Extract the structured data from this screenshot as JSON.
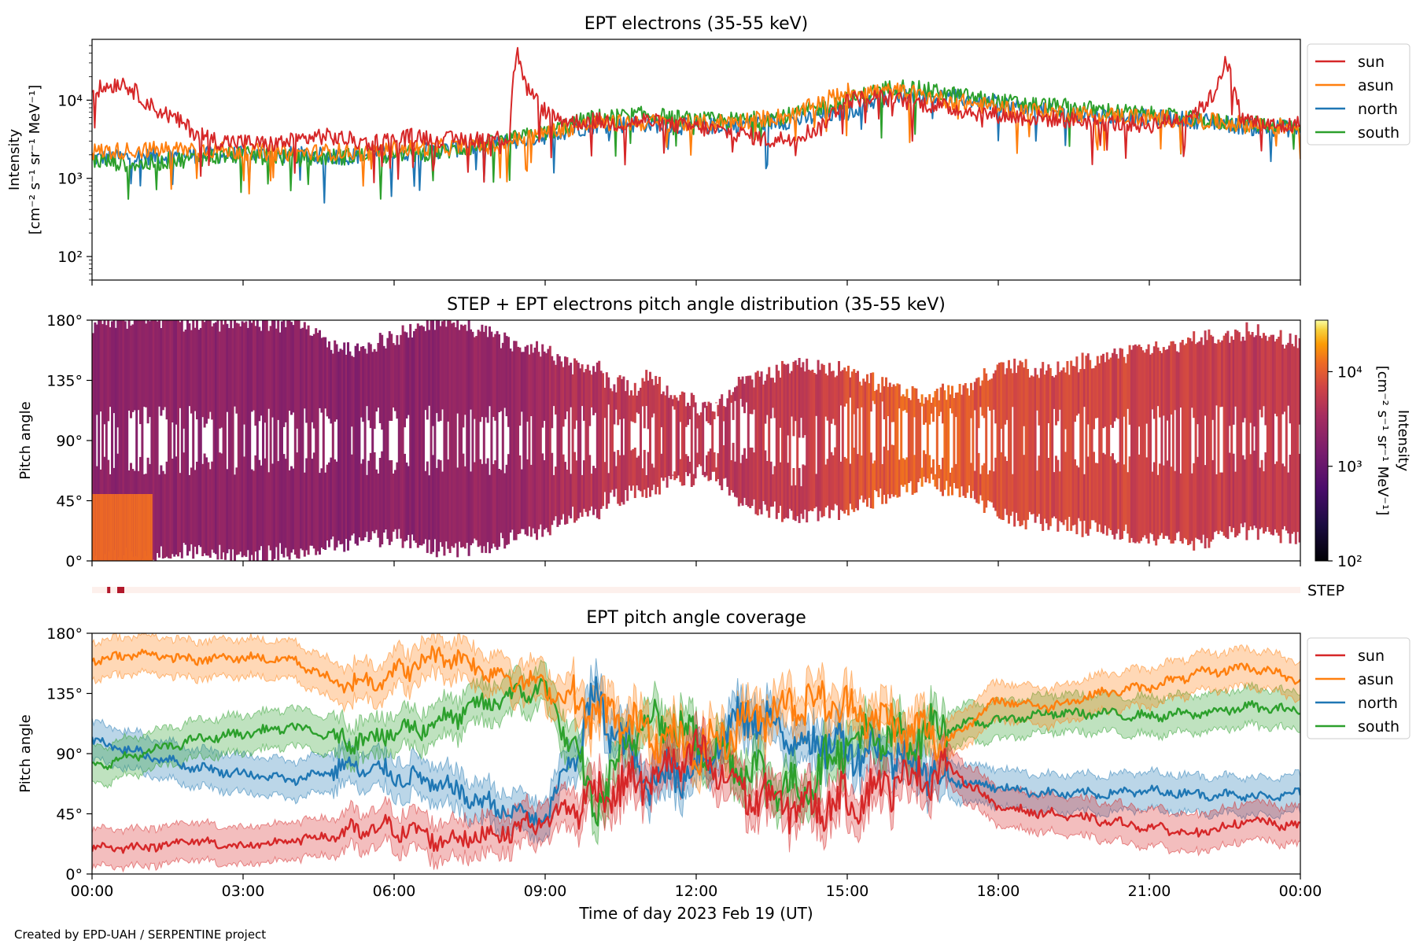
{
  "footer": "Created by EPD-UAH / SERPENTINE project",
  "colors": {
    "sun": "#d62728",
    "asun": "#ff7f0e",
    "north": "#1f77b4",
    "south": "#2ca02c"
  },
  "chart_data": [
    {
      "type": "line",
      "title": "EPT electrons (35-55 keV)",
      "ylabel": [
        "Intensity",
        "[cm⁻² s⁻¹ sr⁻¹ MeV⁻¹]"
      ],
      "yscale": "log",
      "ylim": [
        50,
        60000
      ],
      "yticks": [
        {
          "value": 100,
          "label": "10²"
        },
        {
          "value": 1000,
          "label": "10³"
        },
        {
          "value": 10000,
          "label": "10⁴"
        }
      ],
      "xlim": [
        0,
        24
      ],
      "legend": {
        "placement": "outside-top-right",
        "entries": [
          "sun",
          "asun",
          "north",
          "south"
        ]
      },
      "series": [
        {
          "name": "sun",
          "color": "#d62728",
          "x": [
            0,
            0.3,
            0.6,
            0.9,
            1.2,
            1.6,
            2,
            2.5,
            3,
            3.5,
            4,
            4.5,
            5,
            5.5,
            6,
            6.5,
            7,
            7.5,
            8,
            8.3,
            8.45,
            8.6,
            8.9,
            9.2,
            9.6,
            10,
            10.5,
            11,
            11.5,
            12,
            12.5,
            13,
            13.5,
            14,
            14.5,
            15,
            15.5,
            16,
            16.5,
            17,
            17.5,
            18,
            18.5,
            19,
            19.5,
            20,
            20.5,
            21,
            21.5,
            22,
            22.3,
            22.5,
            22.8,
            23.2,
            23.6,
            24
          ],
          "values": [
            13000,
            15000,
            17000,
            12000,
            8000,
            6000,
            4000,
            3000,
            2900,
            2700,
            3000,
            3500,
            3200,
            2800,
            3200,
            3500,
            3100,
            3200,
            3300,
            3300,
            40000,
            15000,
            8000,
            6000,
            5200,
            5500,
            5000,
            5500,
            4800,
            4500,
            4000,
            3600,
            3000,
            3500,
            4500,
            10000,
            11000,
            10000,
            9000,
            8000,
            7000,
            6500,
            6000,
            5800,
            5500,
            5200,
            5000,
            4800,
            5500,
            7500,
            12000,
            30000,
            6000,
            5000,
            4500,
            5000
          ]
        },
        {
          "name": "asun",
          "color": "#ff7f0e",
          "x": [
            0,
            1,
            2,
            3,
            4,
            5,
            5.5,
            6,
            7,
            8,
            9,
            10,
            11,
            12,
            13,
            14,
            15,
            16,
            17,
            18,
            19,
            20,
            21,
            22,
            23,
            24
          ],
          "values": [
            2200,
            2300,
            2400,
            2200,
            2100,
            2200,
            2100,
            2400,
            2500,
            2600,
            3800,
            5000,
            5200,
            5000,
            5500,
            6500,
            13000,
            13000,
            10000,
            8000,
            7000,
            6500,
            6000,
            5500,
            4800,
            4500
          ]
        },
        {
          "name": "north",
          "color": "#1f77b4",
          "x": [
            0,
            1,
            2,
            3,
            4,
            5,
            6,
            7,
            8,
            9,
            10,
            11,
            12,
            13,
            14,
            15,
            16,
            17,
            18,
            19,
            20,
            21,
            22,
            23,
            24
          ],
          "values": [
            1800,
            1900,
            2000,
            2000,
            2000,
            1900,
            2100,
            2300,
            2700,
            3500,
            4800,
            5000,
            4500,
            5000,
            5500,
            7000,
            12000,
            11000,
            9000,
            7000,
            6500,
            6000,
            5500,
            4500,
            4300
          ]
        },
        {
          "name": "south",
          "color": "#2ca02c",
          "x": [
            0,
            1,
            2,
            3,
            4,
            5,
            6,
            7,
            8,
            9,
            10,
            11,
            12,
            13,
            14,
            15,
            16,
            17,
            18,
            19,
            20,
            21,
            22,
            23,
            24
          ],
          "values": [
            1700,
            1500,
            1800,
            2000,
            1800,
            1900,
            2000,
            2200,
            2800,
            3800,
            6000,
            6500,
            5500,
            5500,
            6500,
            10000,
            15000,
            12000,
            9500,
            8500,
            7500,
            6500,
            5500,
            5000,
            4800
          ]
        }
      ]
    },
    {
      "type": "heatmap",
      "title": "STEP + EPT electrons pitch angle distribution (35-55 keV)",
      "ylabel": "Pitch angle",
      "ylim": [
        0,
        180
      ],
      "yticks": [
        {
          "value": 0,
          "label": "0°"
        },
        {
          "value": 45,
          "label": "45°"
        },
        {
          "value": 90,
          "label": "90°"
        },
        {
          "value": 135,
          "label": "135°"
        },
        {
          "value": 180,
          "label": "180°"
        }
      ],
      "xlim": [
        0,
        24
      ],
      "colorbar": {
        "label": [
          "Intensity",
          "[cm⁻² s⁻¹ sr⁻¹ MeV⁻¹]"
        ],
        "scale": "log",
        "range": [
          100,
          35000
        ],
        "colormap": "inferno",
        "ticks": [
          {
            "value": 100,
            "label": "10²"
          },
          {
            "value": 1000,
            "label": "10³"
          },
          {
            "value": 10000,
            "label": "10⁴"
          }
        ]
      },
      "intensity_hourly": [
        2000,
        2100,
        2100,
        2000,
        2000,
        2000,
        2100,
        2300,
        2500,
        3800,
        5000,
        5200,
        5000,
        5200,
        5600,
        9000,
        11000,
        9000,
        7500,
        7000,
        6500,
        6000,
        5500,
        5000
      ],
      "step_label": "STEP",
      "step_marks_hours": [
        0.3,
        0.5
      ]
    },
    {
      "type": "line",
      "title": "EPT pitch angle coverage",
      "ylabel": "Pitch angle",
      "xlabel": "Time of day 2023 Feb 19 (UT)",
      "ylim": [
        0,
        180
      ],
      "yticks": [
        {
          "value": 0,
          "label": "0°"
        },
        {
          "value": 45,
          "label": "45°"
        },
        {
          "value": 90,
          "label": "90°"
        },
        {
          "value": 135,
          "label": "135°"
        },
        {
          "value": 180,
          "label": "180°"
        }
      ],
      "xlim": [
        0,
        24
      ],
      "xticks": [
        {
          "value": 0,
          "label": "00:00"
        },
        {
          "value": 3,
          "label": "03:00"
        },
        {
          "value": 6,
          "label": "06:00"
        },
        {
          "value": 9,
          "label": "09:00"
        },
        {
          "value": 12,
          "label": "12:00"
        },
        {
          "value": 15,
          "label": "15:00"
        },
        {
          "value": 18,
          "label": "18:00"
        },
        {
          "value": 21,
          "label": "21:00"
        },
        {
          "value": 24,
          "label": "00:00"
        }
      ],
      "legend": {
        "placement": "outside-top-right",
        "entries": [
          "sun",
          "asun",
          "north",
          "south"
        ]
      },
      "series": [
        {
          "name": "sun",
          "color": "#d62728",
          "x": [
            0,
            1,
            2,
            3,
            4,
            5,
            6,
            7,
            8,
            9,
            10,
            11,
            12,
            13,
            14,
            15,
            16,
            17,
            18,
            19,
            20,
            21,
            22,
            23,
            24
          ],
          "values": [
            20,
            20,
            25,
            20,
            25,
            30,
            35,
            25,
            30,
            40,
            60,
            70,
            90,
            60,
            50,
            55,
            70,
            80,
            50,
            45,
            40,
            35,
            30,
            40,
            35
          ]
        },
        {
          "name": "asun",
          "color": "#ff7f0e",
          "x": [
            0,
            1,
            2,
            3,
            4,
            5,
            6,
            7,
            8,
            9,
            10,
            11,
            12,
            13,
            14,
            15,
            16,
            17,
            18,
            19,
            20,
            21,
            22,
            23,
            24
          ],
          "values": [
            160,
            165,
            160,
            162,
            160,
            140,
            150,
            165,
            150,
            140,
            120,
            110,
            90,
            115,
            130,
            125,
            110,
            100,
            130,
            125,
            135,
            140,
            150,
            155,
            145
          ]
        },
        {
          "name": "north",
          "color": "#1f77b4",
          "x": [
            0,
            1,
            2,
            3,
            4,
            5,
            6,
            7,
            8,
            9,
            10,
            11,
            12,
            13,
            14,
            15,
            16,
            17,
            18,
            19,
            20,
            21,
            22,
            23,
            24
          ],
          "values": [
            100,
            90,
            80,
            75,
            70,
            80,
            75,
            65,
            50,
            40,
            130,
            70,
            80,
            120,
            100,
            95,
            90,
            70,
            65,
            60,
            60,
            62,
            60,
            58,
            60
          ]
        },
        {
          "name": "south",
          "color": "#2ca02c",
          "x": [
            0,
            1,
            2,
            3,
            4,
            5,
            6,
            7,
            8,
            9,
            10,
            11,
            12,
            13,
            14,
            15,
            16,
            17,
            18,
            19,
            20,
            21,
            22,
            23,
            24
          ],
          "values": [
            80,
            90,
            100,
            105,
            110,
            100,
            105,
            115,
            130,
            140,
            50,
            120,
            100,
            80,
            60,
            100,
            100,
            110,
            115,
            120,
            120,
            118,
            120,
            125,
            122
          ]
        }
      ]
    }
  ]
}
